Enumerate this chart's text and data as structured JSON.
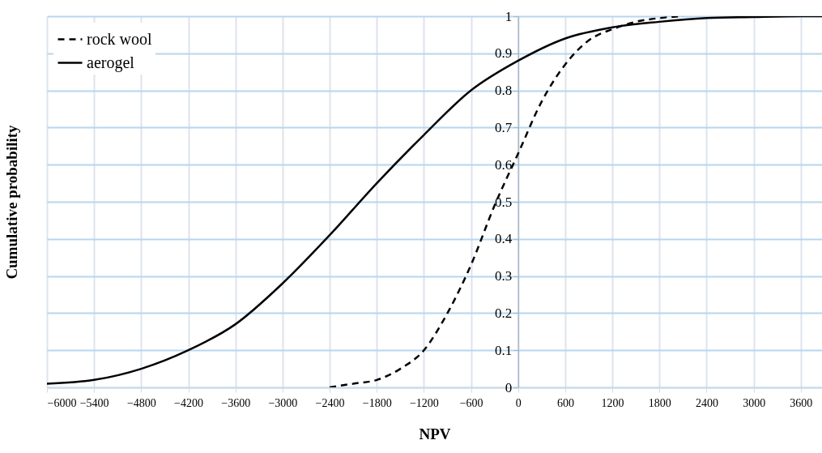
{
  "chart_data": {
    "type": "line",
    "xlabel": "NPV",
    "ylabel": "Cumulative probability",
    "xlim": [
      -6000,
      3870
    ],
    "ylim": [
      0,
      1
    ],
    "xticks": [
      -6000,
      -5400,
      -4800,
      -4200,
      -3600,
      -3000,
      -2400,
      -1800,
      -1200,
      -600,
      0,
      600,
      1200,
      1800,
      2400,
      3000,
      3600
    ],
    "yticks": [
      0,
      0.1,
      0.2,
      0.3,
      0.4,
      0.5,
      0.6,
      0.7,
      0.8,
      0.9,
      1
    ],
    "grid": true,
    "legend": "top left",
    "series": [
      {
        "name": "rock wool",
        "color": "#000000",
        "line_style": "dashed",
        "x": [
          -2400,
          -2100,
          -1800,
          -1500,
          -1200,
          -900,
          -600,
          -300,
          0,
          300,
          600,
          900,
          1200,
          1500,
          1800,
          2100
        ],
        "values": [
          0.0,
          0.01,
          0.02,
          0.05,
          0.1,
          0.2,
          0.33,
          0.49,
          0.63,
          0.77,
          0.87,
          0.935,
          0.965,
          0.985,
          0.995,
          1.0
        ]
      },
      {
        "name": "aerogel",
        "color": "#000000",
        "line_style": "solid",
        "x": [
          -6000,
          -5400,
          -4800,
          -4200,
          -3600,
          -3000,
          -2400,
          -1800,
          -1200,
          -600,
          0,
          600,
          1200,
          1800,
          2400,
          3000,
          3600,
          3870
        ],
        "values": [
          0.01,
          0.02,
          0.05,
          0.1,
          0.17,
          0.28,
          0.41,
          0.55,
          0.68,
          0.8,
          0.88,
          0.94,
          0.97,
          0.985,
          0.995,
          0.998,
          1.0,
          1.0
        ]
      }
    ]
  }
}
